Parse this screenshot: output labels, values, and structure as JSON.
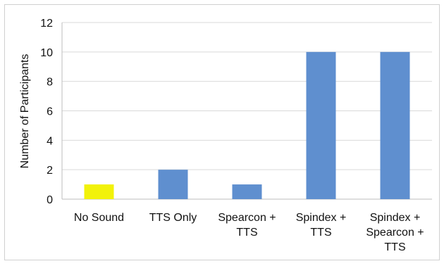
{
  "chart_data": {
    "type": "bar",
    "title": "",
    "xlabel": "",
    "ylabel": "Number of Participants",
    "ylim": [
      0,
      12
    ],
    "yticks": [
      0,
      2,
      4,
      6,
      8,
      10,
      12
    ],
    "grid": true,
    "legend": "none",
    "categories": [
      [
        "No Sound"
      ],
      [
        "TTS Only"
      ],
      [
        "Spearcon +",
        "TTS"
      ],
      [
        "Spindex +",
        "TTS"
      ],
      [
        "Spindex +",
        "Spearcon +",
        "TTS"
      ]
    ],
    "values": [
      1,
      2,
      1,
      10,
      10
    ],
    "colors": [
      "#f2f20a",
      "#5f8fcf",
      "#5f8fcf",
      "#5f8fcf",
      "#5f8fcf"
    ]
  }
}
